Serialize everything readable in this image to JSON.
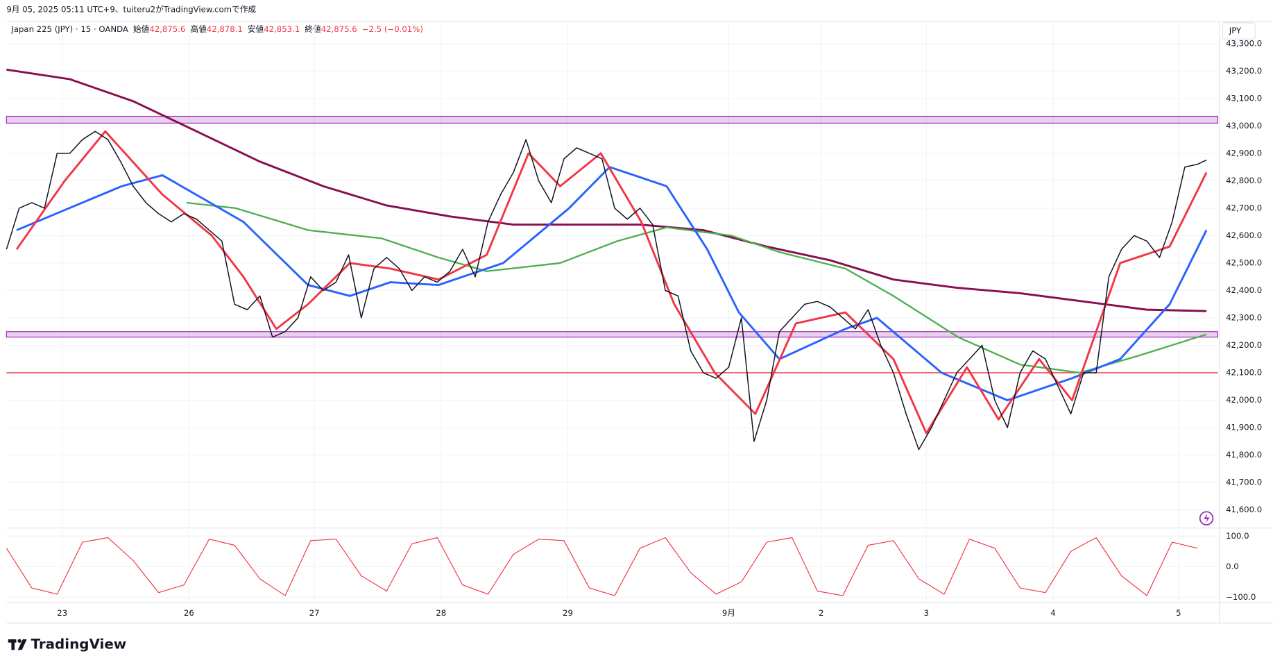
{
  "header": {
    "caption": "9月 05, 2025 05:11 UTC+9、tuiteru2がTradingView.comで作成",
    "symbol": "Japan 225 (JPY) · 15 · OANDA",
    "ohlc": [
      {
        "label": "始値",
        "value": "42,875.6"
      },
      {
        "label": "高値",
        "value": "42,878.1"
      },
      {
        "label": "安値",
        "value": "42,853.1"
      },
      {
        "label": "終値",
        "value": "42,875.6"
      }
    ],
    "change": "−2.5 (−0.01%)",
    "currency": "JPY",
    "logo": "TradingView"
  },
  "chart_data": [
    {
      "type": "line",
      "xlim": [
        0,
        95.6
      ],
      "ylim": [
        41540,
        43370
      ],
      "xticks": [
        {
          "value": 4.4,
          "label": "23"
        },
        {
          "value": 14.4,
          "label": "26"
        },
        {
          "value": 24.3,
          "label": "27"
        },
        {
          "value": 34.3,
          "label": "28"
        },
        {
          "value": 44.3,
          "label": "29"
        },
        {
          "value": 57,
          "label": "9月"
        },
        {
          "value": 64.3,
          "label": "2"
        },
        {
          "value": 72.6,
          "label": "3"
        },
        {
          "value": 82.6,
          "label": "4"
        },
        {
          "value": 92.5,
          "label": "5"
        }
      ],
      "yticks": [
        {
          "value": 41600,
          "label": "41,600.0"
        },
        {
          "value": 41700,
          "label": "41,700.0"
        },
        {
          "value": 41800,
          "label": "41,800.0"
        },
        {
          "value": 41900,
          "label": "41,900.0"
        },
        {
          "value": 42000,
          "label": "42,000.0"
        },
        {
          "value": 42100,
          "label": "42,100.0"
        },
        {
          "value": 42200,
          "label": "42,200.0"
        },
        {
          "value": 42300,
          "label": "42,300.0"
        },
        {
          "value": 42400,
          "label": "42,400.0"
        },
        {
          "value": 42500,
          "label": "42,500.0"
        },
        {
          "value": 42600,
          "label": "42,600.0"
        },
        {
          "value": 42700,
          "label": "42,700.0"
        },
        {
          "value": 42800,
          "label": "42,800.0"
        },
        {
          "value": 42900,
          "label": "42,900.0"
        },
        {
          "value": 43000,
          "label": "43,000.0"
        },
        {
          "value": 43100,
          "label": "43,100.0"
        },
        {
          "value": 43200,
          "label": "43,200.0"
        },
        {
          "value": 43300,
          "label": "43,300.0"
        }
      ],
      "grid": true,
      "bands": [
        {
          "range": [
            43010,
            43035
          ],
          "color": "#9c27b0"
        },
        {
          "range": [
            42230,
            42250
          ],
          "color": "#9c27b0"
        }
      ],
      "hlines": [
        {
          "value": 42100,
          "color": "#f23645"
        }
      ],
      "series": [
        {
          "color": "#880e4f",
          "width": 2.5,
          "x": [
            0,
            5,
            10,
            15,
            20,
            25,
            30,
            35,
            40,
            45,
            50,
            55,
            60,
            65,
            70,
            75,
            80,
            85,
            90,
            94.7
          ],
          "values": [
            43205,
            43170,
            43090,
            42980,
            42870,
            42780,
            42710,
            42670,
            42640,
            42640,
            42640,
            42620,
            42560,
            42510,
            42440,
            42410,
            42390,
            42360,
            42330,
            42325
          ]
        },
        {
          "color": "#4caf50",
          "width": 2,
          "x": [
            14.2,
            18.1,
            23.8,
            29.6,
            34.1,
            37.9,
            43.7,
            48.2,
            52.1,
            57.2,
            61,
            66.2,
            70,
            75.1,
            80,
            84.7,
            89.2,
            94.7
          ],
          "values": [
            42720,
            42700,
            42620,
            42590,
            42520,
            42470,
            42500,
            42580,
            42630,
            42600,
            42540,
            42480,
            42380,
            42230,
            42130,
            42100,
            42160,
            42240
          ]
        },
        {
          "color": "#2962ff",
          "width": 2.5,
          "x": [
            0.8,
            9.1,
            12.3,
            18.7,
            23.8,
            27.1,
            30.3,
            34.1,
            39.2,
            44.4,
            47.6,
            52.1,
            55.3,
            57.8,
            61,
            66.2,
            68.7,
            73.8,
            79,
            84.1,
            87.9,
            91.8,
            94.7
          ],
          "values": [
            42620,
            42780,
            42820,
            42650,
            42420,
            42380,
            42430,
            42420,
            42500,
            42700,
            42850,
            42780,
            42550,
            42320,
            42150,
            42260,
            42300,
            42100,
            42000,
            42080,
            42150,
            42350,
            42620
          ]
        },
        {
          "color": "#f23645",
          "width": 2.5,
          "x": [
            0.8,
            4.6,
            7.8,
            12.3,
            16.2,
            18.7,
            21.3,
            23.8,
            27.1,
            30.3,
            34.1,
            37.9,
            41.2,
            43.7,
            46.9,
            50.1,
            52.7,
            55.9,
            59.1,
            62.3,
            66.2,
            70,
            72.6,
            75.8,
            78.3,
            81.5,
            84.1,
            87.9,
            91.8,
            94.7
          ],
          "values": [
            42550,
            42800,
            42980,
            42750,
            42600,
            42450,
            42260,
            42350,
            42500,
            42480,
            42440,
            42530,
            42900,
            42780,
            42900,
            42650,
            42350,
            42100,
            41950,
            42280,
            42320,
            42150,
            41880,
            42120,
            41930,
            42150,
            42000,
            42500,
            42560,
            42830
          ]
        },
        {
          "color": "#131722",
          "width": 1.3,
          "x": [
            0,
            1,
            2,
            3,
            4,
            5,
            6,
            7,
            8,
            9,
            10,
            11,
            12,
            13,
            14,
            15,
            16,
            17,
            18,
            19,
            20,
            21,
            22,
            23,
            24,
            25,
            26,
            27,
            28,
            29,
            30,
            31,
            32,
            33,
            34,
            35,
            36,
            37,
            38,
            39,
            40,
            41,
            42,
            43,
            44,
            45,
            46,
            47,
            48,
            49,
            50,
            51,
            52,
            53,
            54,
            55,
            56,
            57,
            58,
            59,
            60,
            61,
            62,
            63,
            64,
            65,
            66,
            67,
            68,
            69,
            70,
            71,
            72,
            73,
            74,
            75,
            76,
            77,
            78,
            79,
            80,
            81,
            82,
            83,
            84,
            85,
            86,
            87,
            88,
            89,
            90,
            91,
            92,
            93,
            94,
            94.7
          ],
          "values": [
            42550,
            42700,
            42720,
            42700,
            42900,
            42900,
            42950,
            42980,
            42950,
            42870,
            42780,
            42720,
            42680,
            42650,
            42680,
            42660,
            42620,
            42580,
            42350,
            42330,
            42380,
            42230,
            42250,
            42300,
            42450,
            42400,
            42430,
            42530,
            42300,
            42480,
            42520,
            42480,
            42400,
            42450,
            42430,
            42470,
            42550,
            42450,
            42650,
            42750,
            42830,
            42950,
            42800,
            42720,
            42880,
            42920,
            42900,
            42880,
            42700,
            42660,
            42700,
            42640,
            42400,
            42380,
            42180,
            42100,
            42080,
            42120,
            42300,
            41850,
            42000,
            42250,
            42300,
            42350,
            42360,
            42340,
            42300,
            42260,
            42330,
            42200,
            42100,
            41950,
            41820,
            41900,
            42000,
            42100,
            42150,
            42200,
            42000,
            41900,
            42100,
            42180,
            42150,
            42050,
            41950,
            42100,
            42100,
            42450,
            42550,
            42600,
            42580,
            42520,
            42650,
            42850,
            42860,
            42875.6
          ]
        }
      ]
    },
    {
      "type": "line",
      "xlim": [
        0,
        95.6
      ],
      "ylim": [
        -113,
        121
      ],
      "yticks": [
        {
          "value": -100,
          "label": "−100.0"
        },
        {
          "value": 0,
          "label": "0.0"
        },
        {
          "value": 100,
          "label": "100.0"
        }
      ],
      "series": [
        {
          "color": "#f23645",
          "width": 1,
          "x": [
            0,
            2,
            4,
            6,
            8,
            10,
            12,
            14,
            16,
            18,
            20,
            22,
            24,
            26,
            28,
            30,
            32,
            34,
            36,
            38,
            40,
            42,
            44,
            46,
            48,
            50,
            52,
            54,
            56,
            58,
            60,
            62,
            64,
            66,
            68,
            70,
            72,
            74,
            76,
            78,
            80,
            82,
            84,
            86,
            88,
            90,
            92,
            94
          ],
          "values": [
            60,
            -70,
            -90,
            80,
            95,
            20,
            -85,
            -60,
            90,
            70,
            -40,
            -95,
            85,
            90,
            -30,
            -80,
            75,
            95,
            -60,
            -90,
            40,
            90,
            85,
            -70,
            -95,
            60,
            95,
            -20,
            -90,
            -50,
            80,
            95,
            -80,
            -95,
            70,
            85,
            -40,
            -90,
            90,
            60,
            -70,
            -85,
            50,
            95,
            -30,
            -95,
            80,
            60
          ]
        }
      ]
    }
  ]
}
